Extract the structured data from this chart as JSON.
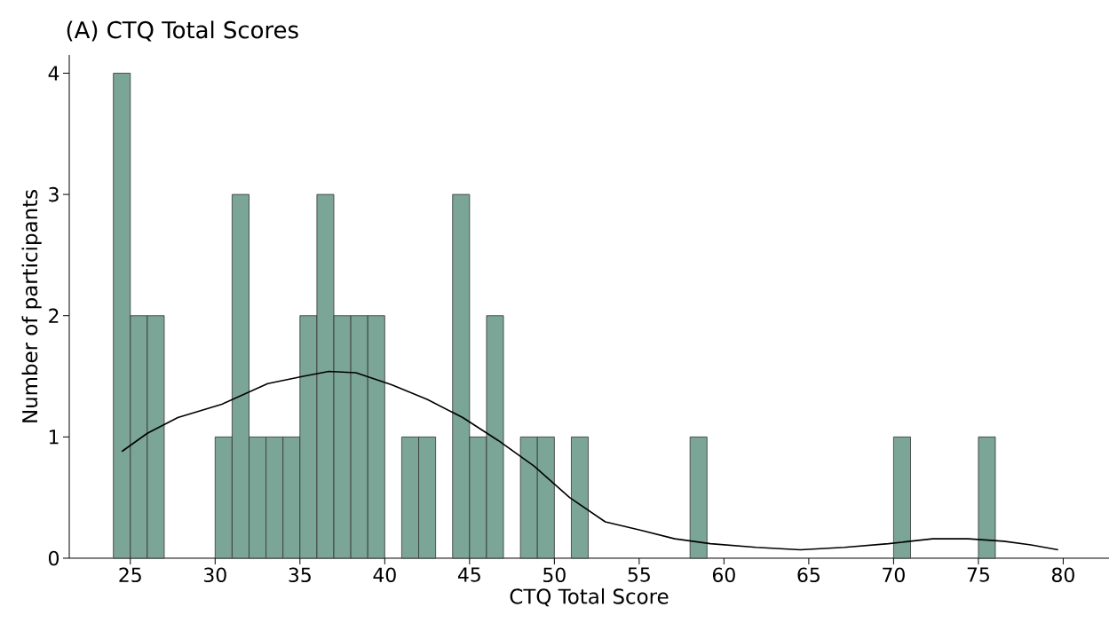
{
  "chart_data": {
    "type": "histogram",
    "title": "(A) CTQ Total Scores",
    "xlabel": "CTQ Total Score",
    "ylabel": "Number of participants",
    "bins": [
      24,
      25,
      26,
      27,
      28,
      29,
      30,
      31,
      32,
      33,
      34,
      35,
      36,
      37,
      38,
      39,
      40,
      41,
      42,
      43,
      44,
      45,
      46,
      47,
      48,
      49,
      50,
      51,
      52,
      53,
      54,
      55,
      56,
      57,
      58,
      59,
      60,
      61,
      62,
      63,
      64,
      65,
      66,
      67,
      68,
      69,
      70,
      71,
      72,
      73,
      74,
      75,
      76
    ],
    "values": [
      4,
      2,
      2,
      0,
      0,
      0,
      1,
      3,
      1,
      1,
      1,
      2,
      3,
      2,
      2,
      2,
      0,
      1,
      1,
      0,
      3,
      1,
      2,
      0,
      1,
      1,
      0,
      1,
      0,
      0,
      0,
      0,
      0,
      0,
      1,
      0,
      0,
      0,
      0,
      0,
      0,
      0,
      0,
      0,
      0,
      0,
      1,
      0,
      0,
      0,
      0,
      1
    ],
    "color": "#7ba596",
    "series": [
      {
        "type": "line",
        "color": "#000000",
        "x": [
          24.5,
          26,
          27.8,
          30.4,
          33.1,
          35.2,
          36.7,
          38.3,
          40.4,
          42.5,
          44.6,
          46.7,
          48.8,
          50.9,
          53.0,
          55.1,
          57.1,
          59.2,
          61.9,
          64.5,
          67.1,
          69.7,
          72.3,
          74.4,
          76.5,
          78.1,
          79.7
        ],
        "values": [
          0.88,
          1.03,
          1.16,
          1.27,
          1.44,
          1.5,
          1.54,
          1.53,
          1.43,
          1.31,
          1.16,
          0.97,
          0.76,
          0.5,
          0.3,
          0.23,
          0.16,
          0.12,
          0.09,
          0.07,
          0.09,
          0.12,
          0.16,
          0.16,
          0.14,
          0.11,
          0.07
        ]
      }
    ],
    "xlim": [
      21.4,
      82.7
    ],
    "ylim": [
      0,
      4.15
    ],
    "xticks": [
      25,
      30,
      35,
      40,
      45,
      50,
      55,
      60,
      65,
      70,
      75,
      80
    ],
    "yticks": [
      0,
      1,
      2,
      3,
      4
    ],
    "grid": false
  }
}
